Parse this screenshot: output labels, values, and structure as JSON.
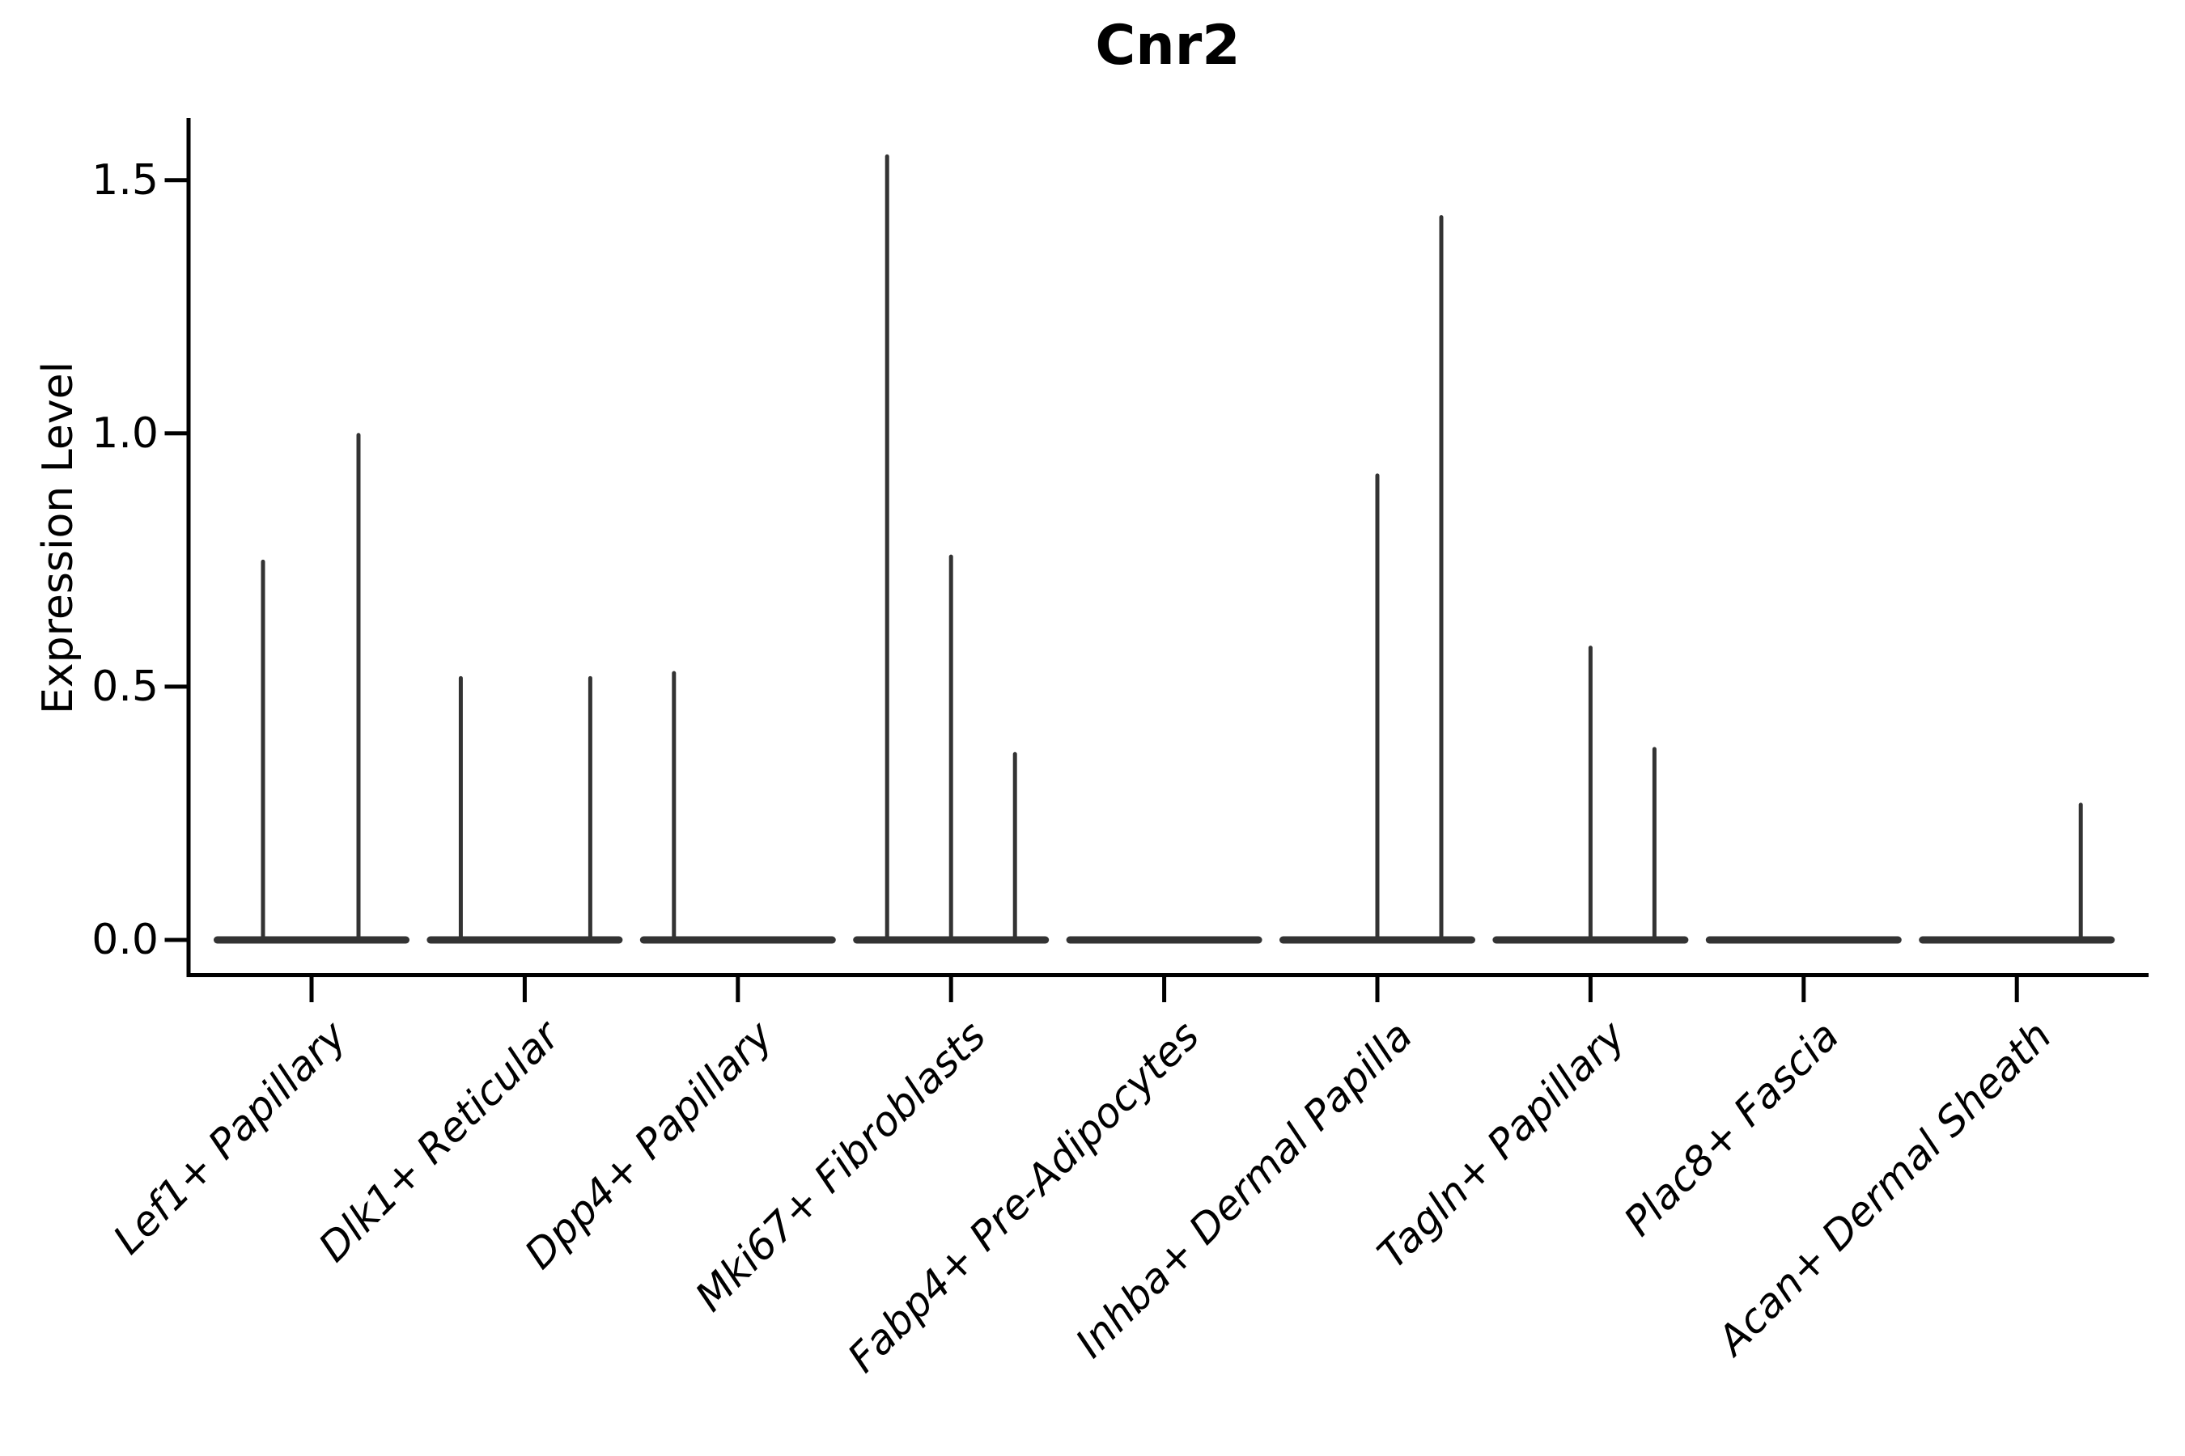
{
  "figure": {
    "title": "Cnr2"
  },
  "chart_data": {
    "type": "violin",
    "title": "Cnr2",
    "xlabel": "",
    "ylabel": "Expression Level",
    "ytick_labels": [
      "0.0",
      "0.5",
      "1.0",
      "1.5"
    ],
    "ytick_values": [
      0.0,
      0.5,
      1.0,
      1.5
    ],
    "ylim": [
      -0.07,
      1.62
    ],
    "grid": false,
    "legend": "none",
    "violin_color": "#333333",
    "axis_color": "#000000",
    "background_color": "#ffffff",
    "description": "Single-gene violin plot; each cell-type group shows a wide flat density bar at expression 0 with thin vertical spikes rising to the maximum expression of each sub-violin.",
    "groups": [
      {
        "label": "Lef1+ Papillary",
        "violins": [
          {
            "dx": -60,
            "max": 0.75
          },
          {
            "dx": 58,
            "max": 1.0
          }
        ]
      },
      {
        "label": "Dlk1+ Reticular",
        "violins": [
          {
            "dx": -79,
            "max": 0.52
          },
          {
            "dx": 81,
            "max": 0.52
          }
        ]
      },
      {
        "label": "Dpp4+ Papillary",
        "violins": [
          {
            "dx": -79,
            "max": 0.53
          }
        ]
      },
      {
        "label": "Mki67+ Fibroblasts",
        "violins": [
          {
            "dx": -79,
            "max": 1.55
          },
          {
            "dx": 0,
            "max": 0.76
          },
          {
            "dx": 79,
            "max": 0.37
          }
        ]
      },
      {
        "label": "Fabp4+ Pre-Adipocytes",
        "violins": []
      },
      {
        "label": "Inhba+ Dermal Papilla",
        "violins": [
          {
            "dx": 0,
            "max": 0.92
          },
          {
            "dx": 79,
            "max": 1.43
          }
        ]
      },
      {
        "label": "Tagln+ Papillary",
        "violins": [
          {
            "dx": 0,
            "max": 0.58
          },
          {
            "dx": 79,
            "max": 0.38
          }
        ]
      },
      {
        "label": "Plac8+ Fascia",
        "violins": []
      },
      {
        "label": "Acan+ Dermal Sheath",
        "violins": [
          {
            "dx": 79,
            "max": 0.27
          }
        ]
      }
    ]
  }
}
